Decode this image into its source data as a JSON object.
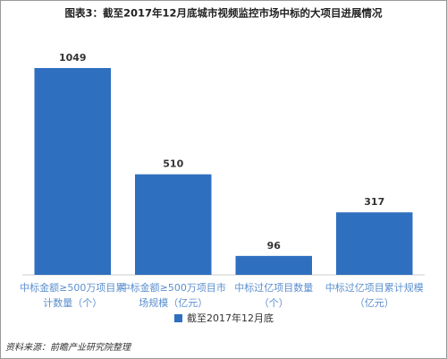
{
  "chart_data": {
    "type": "bar",
    "title": "图表3：截至2017年12月底城市视频监控市场中标的大项目进展情况",
    "categories": [
      [
        "中标金额≥500万项目累",
        "计数量（个）"
      ],
      [
        "中标金额≥500万项目市",
        "场规模（亿元）"
      ],
      [
        "中标过亿项目数量",
        "（个）"
      ],
      [
        "中标过亿项目累计规模",
        "（亿元）"
      ]
    ],
    "series": [
      {
        "name": "截至2017年12月底",
        "color": "#2f6fbf",
        "values": [
          1049,
          510,
          96,
          317
        ]
      }
    ],
    "source": "资料来源：前瞻产业研究院整理"
  }
}
